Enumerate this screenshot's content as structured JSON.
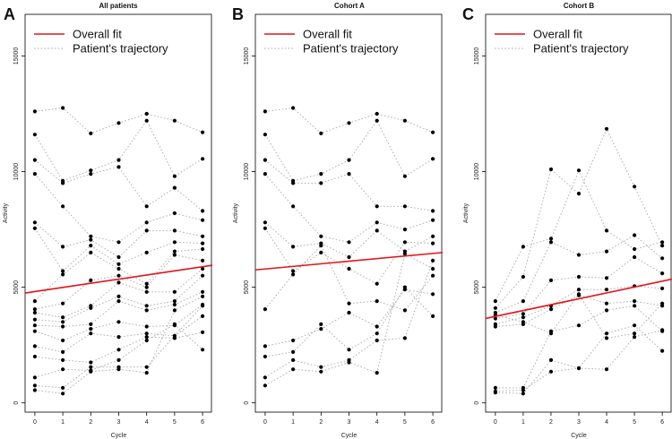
{
  "colors": {
    "fit": "#e3141c",
    "trajectory": "#a8a8a8",
    "point": "#000000",
    "axis": "#000000"
  },
  "chart_data": [
    {
      "type": "scatter",
      "panel_label": "A",
      "title": "All patients",
      "xlabel": "Cycle",
      "ylabel": "Activity",
      "x_ticks": [
        "0",
        "1",
        "2",
        "3",
        "4",
        "5",
        "6"
      ],
      "y_ticks": [
        "0",
        "5000",
        "10000",
        "15000"
      ],
      "xlim": [
        -0.35,
        6.35
      ],
      "ylim": [
        -400,
        16800
      ],
      "legend": {
        "position": "top-left",
        "entries": [
          "Overall fit",
          "Patient's trajectory"
        ]
      },
      "fit": {
        "x": [
          -0.35,
          6.35
        ],
        "y": [
          4750,
          5950
        ]
      },
      "trajectories": [
        [
          [
            0,
            12600
          ],
          [
            1,
            12750
          ],
          [
            2,
            11650
          ],
          [
            3,
            12100
          ],
          [
            4,
            12500
          ],
          [
            5,
            12200
          ],
          [
            6,
            11700
          ]
        ],
        [
          [
            0,
            11600
          ],
          [
            1,
            9600
          ],
          [
            2,
            10050
          ],
          [
            3,
            10500
          ],
          [
            4,
            12200
          ],
          [
            5,
            9800
          ],
          [
            6,
            10550
          ]
        ],
        [
          [
            0,
            10500
          ],
          [
            1,
            9500
          ],
          [
            2,
            9900
          ],
          [
            3,
            10200
          ],
          [
            4,
            8500
          ],
          [
            5,
            9300
          ],
          [
            6,
            8300
          ]
        ],
        [
          [
            0,
            9900
          ],
          [
            1,
            8500
          ],
          [
            2,
            7200
          ],
          [
            3,
            6950
          ],
          [
            4,
            7800
          ],
          [
            5,
            8200
          ],
          [
            6,
            7900
          ]
        ],
        [
          [
            0,
            7800
          ],
          [
            1,
            6750
          ],
          [
            2,
            7050
          ],
          [
            3,
            6300
          ],
          [
            4,
            7450
          ],
          [
            5,
            7450
          ],
          [
            6,
            7200
          ]
        ],
        [
          [
            0,
            7550
          ],
          [
            1,
            5700
          ],
          [
            2,
            6800
          ],
          [
            3,
            6000
          ],
          [
            4,
            6500
          ],
          [
            5,
            6950
          ],
          [
            6,
            6900
          ]
        ],
        [
          [
            0,
            4400
          ],
          [
            1,
            5550
          ],
          [
            2,
            6500
          ],
          [
            3,
            5800
          ],
          [
            4,
            5150
          ],
          [
            5,
            6550
          ],
          [
            6,
            6650
          ]
        ],
        [
          [
            0,
            4050
          ],
          [
            1,
            4300
          ],
          [
            2,
            5300
          ],
          [
            3,
            5500
          ],
          [
            4,
            5000
          ],
          [
            5,
            6400
          ],
          [
            6,
            6150
          ]
        ],
        [
          [
            0,
            3900
          ],
          [
            1,
            3700
          ],
          [
            2,
            4200
          ],
          [
            3,
            5200
          ],
          [
            4,
            4800
          ],
          [
            5,
            4800
          ],
          [
            6,
            5800
          ]
        ],
        [
          [
            0,
            3600
          ],
          [
            1,
            3500
          ],
          [
            2,
            4100
          ],
          [
            3,
            4600
          ],
          [
            4,
            4200
          ],
          [
            5,
            4400
          ],
          [
            6,
            5500
          ]
        ],
        [
          [
            0,
            3350
          ],
          [
            1,
            3300
          ],
          [
            2,
            3400
          ],
          [
            3,
            4400
          ],
          [
            4,
            4000
          ],
          [
            5,
            4250
          ],
          [
            6,
            4800
          ]
        ],
        [
          [
            0,
            3100
          ],
          [
            1,
            2700
          ],
          [
            2,
            3200
          ],
          [
            3,
            3500
          ],
          [
            4,
            3300
          ],
          [
            5,
            3350
          ],
          [
            6,
            4250
          ]
        ],
        [
          [
            0,
            2450
          ],
          [
            1,
            2200
          ],
          [
            2,
            3000
          ],
          [
            3,
            2850
          ],
          [
            4,
            3000
          ],
          [
            5,
            2900
          ],
          [
            6,
            3750
          ]
        ],
        [
          [
            0,
            2000
          ],
          [
            1,
            1850
          ],
          [
            2,
            1750
          ],
          [
            3,
            2300
          ],
          [
            4,
            2850
          ],
          [
            5,
            2800
          ],
          [
            6,
            3050
          ]
        ],
        [
          [
            0,
            1100
          ],
          [
            1,
            1450
          ],
          [
            2,
            1400
          ],
          [
            3,
            1850
          ],
          [
            4,
            2700
          ],
          [
            5,
            3400
          ],
          [
            6,
            2300
          ]
        ],
        [
          [
            0,
            750
          ],
          [
            1,
            650
          ],
          [
            2,
            1550
          ],
          [
            3,
            1550
          ],
          [
            4,
            1550
          ],
          [
            5,
            2900
          ],
          [
            6,
            4200
          ]
        ],
        [
          [
            0,
            550
          ],
          [
            1,
            400
          ],
          [
            2,
            1350
          ],
          [
            3,
            1450
          ],
          [
            4,
            1300
          ],
          [
            5,
            4000
          ],
          [
            6,
            4600
          ]
        ]
      ]
    },
    {
      "type": "scatter",
      "panel_label": "B",
      "title": "Cohort A",
      "xlabel": "Cycle",
      "ylabel": "Activity",
      "x_ticks": [
        "0",
        "1",
        "2",
        "3",
        "4",
        "5",
        "6"
      ],
      "y_ticks": [
        "0",
        "5000",
        "10000",
        "15000"
      ],
      "xlim": [
        -0.35,
        6.35
      ],
      "ylim": [
        -400,
        16800
      ],
      "legend": {
        "position": "top-left",
        "entries": [
          "Overall fit",
          "Patient's trajectory"
        ]
      },
      "fit": {
        "x": [
          -0.35,
          6.35
        ],
        "y": [
          5750,
          6500
        ]
      },
      "trajectories": [
        [
          [
            0,
            12600
          ],
          [
            1,
            12750
          ],
          [
            2,
            11650
          ],
          [
            3,
            12100
          ],
          [
            4,
            12500
          ],
          [
            5,
            12200
          ],
          [
            6,
            11700
          ]
        ],
        [
          [
            0,
            11600
          ],
          [
            1,
            9600
          ],
          [
            2,
            9900
          ],
          [
            3,
            10500
          ],
          [
            4,
            12200
          ],
          [
            5,
            9800
          ],
          [
            6,
            10550
          ]
        ],
        [
          [
            0,
            10500
          ],
          [
            1,
            9500
          ],
          [
            2,
            9500
          ],
          [
            3,
            9900
          ],
          [
            4,
            8500
          ],
          [
            5,
            8500
          ],
          [
            6,
            8300
          ]
        ],
        [
          [
            0,
            9900
          ],
          [
            1,
            8500
          ],
          [
            2,
            7200
          ],
          [
            3,
            6950
          ],
          [
            4,
            7800
          ],
          [
            5,
            7500
          ],
          [
            6,
            7900
          ]
        ],
        [
          [
            0,
            7800
          ],
          [
            1,
            6750
          ],
          [
            2,
            6900
          ],
          [
            3,
            6300
          ],
          [
            4,
            7450
          ],
          [
            5,
            6550
          ],
          [
            6,
            7200
          ]
        ],
        [
          [
            0,
            7550
          ],
          [
            1,
            5700
          ],
          [
            2,
            6500
          ],
          [
            3,
            5800
          ],
          [
            4,
            5150
          ],
          [
            5,
            6950
          ],
          [
            6,
            6900
          ]
        ],
        [
          [
            0,
            4050
          ],
          [
            1,
            5550
          ],
          [
            2,
            6800
          ],
          [
            3,
            4300
          ],
          [
            4,
            4400
          ],
          [
            5,
            4000
          ],
          [
            6,
            5500
          ]
        ],
        [
          [
            0,
            2450
          ],
          [
            1,
            2700
          ],
          [
            2,
            3200
          ],
          [
            3,
            3900
          ],
          [
            4,
            3300
          ],
          [
            5,
            4900
          ],
          [
            6,
            4700
          ]
        ],
        [
          [
            0,
            2000
          ],
          [
            1,
            2200
          ],
          [
            2,
            3400
          ],
          [
            3,
            2300
          ],
          [
            4,
            3000
          ],
          [
            5,
            5000
          ],
          [
            6,
            3750
          ]
        ],
        [
          [
            0,
            1100
          ],
          [
            1,
            1850
          ],
          [
            2,
            1550
          ],
          [
            3,
            1850
          ],
          [
            4,
            2700
          ],
          [
            5,
            2800
          ],
          [
            6,
            6150
          ]
        ],
        [
          [
            0,
            750
          ],
          [
            1,
            1450
          ],
          [
            2,
            1350
          ],
          [
            3,
            1750
          ],
          [
            4,
            1300
          ],
          [
            5,
            6450
          ],
          [
            6,
            5800
          ]
        ]
      ]
    },
    {
      "type": "scatter",
      "panel_label": "C",
      "title": "Cohort B",
      "xlabel": "Cycle",
      "ylabel": "Activity",
      "x_ticks": [
        "0",
        "1",
        "2",
        "3",
        "4",
        "5",
        "6"
      ],
      "y_ticks": [
        "0",
        "5000",
        "10000",
        "15000"
      ],
      "xlim": [
        -0.35,
        6.35
      ],
      "ylim": [
        -400,
        16800
      ],
      "legend": {
        "position": "top-left",
        "entries": [
          "Overall fit",
          "Patient's trajectory"
        ]
      },
      "fit": {
        "x": [
          -0.35,
          6.35
        ],
        "y": [
          3650,
          5350
        ]
      },
      "trajectories": [
        [
          [
            0,
            4400
          ],
          [
            1,
            6750
          ],
          [
            2,
            7100
          ],
          [
            3,
            10050
          ],
          [
            4,
            7450
          ],
          [
            5,
            6650
          ],
          [
            6,
            6950
          ]
        ],
        [
          [
            0,
            4100
          ],
          [
            1,
            5450
          ],
          [
            2,
            10100
          ],
          [
            3,
            9050
          ],
          [
            4,
            11850
          ],
          [
            5,
            9350
          ],
          [
            6,
            6800
          ]
        ],
        [
          [
            0,
            3900
          ],
          [
            1,
            4400
          ],
          [
            2,
            6950
          ],
          [
            3,
            6400
          ],
          [
            4,
            6550
          ],
          [
            5,
            7250
          ],
          [
            6,
            6250
          ]
        ],
        [
          [
            0,
            3650
          ],
          [
            1,
            3850
          ],
          [
            2,
            5300
          ],
          [
            3,
            5450
          ],
          [
            4,
            5400
          ],
          [
            5,
            6300
          ],
          [
            6,
            5600
          ]
        ],
        [
          [
            0,
            3400
          ],
          [
            1,
            3700
          ],
          [
            2,
            4200
          ],
          [
            3,
            4900
          ],
          [
            4,
            4900
          ],
          [
            5,
            5050
          ],
          [
            6,
            4950
          ]
        ],
        [
          [
            0,
            3300
          ],
          [
            1,
            3400
          ],
          [
            2,
            4050
          ],
          [
            3,
            4650
          ],
          [
            4,
            4300
          ],
          [
            5,
            4400
          ],
          [
            6,
            4200
          ]
        ],
        [
          [
            0,
            650
          ],
          [
            1,
            650
          ],
          [
            2,
            3100
          ],
          [
            3,
            3350
          ],
          [
            4,
            4000
          ],
          [
            5,
            4200
          ],
          [
            6,
            3100
          ]
        ],
        [
          [
            0,
            450
          ],
          [
            1,
            400
          ],
          [
            2,
            1850
          ],
          [
            3,
            1500
          ],
          [
            4,
            3000
          ],
          [
            5,
            3350
          ],
          [
            6,
            2250
          ]
        ],
        [
          [
            0,
            500
          ],
          [
            1,
            550
          ],
          [
            2,
            1350
          ],
          [
            3,
            1500
          ],
          [
            4,
            1450
          ],
          [
            5,
            2850
          ],
          [
            6,
            3150
          ]
        ],
        [
          [
            0,
            3800
          ],
          [
            1,
            3500
          ],
          [
            2,
            3000
          ],
          [
            3,
            4700
          ],
          [
            4,
            2800
          ],
          [
            5,
            3000
          ],
          [
            6,
            4300
          ]
        ]
      ]
    }
  ]
}
